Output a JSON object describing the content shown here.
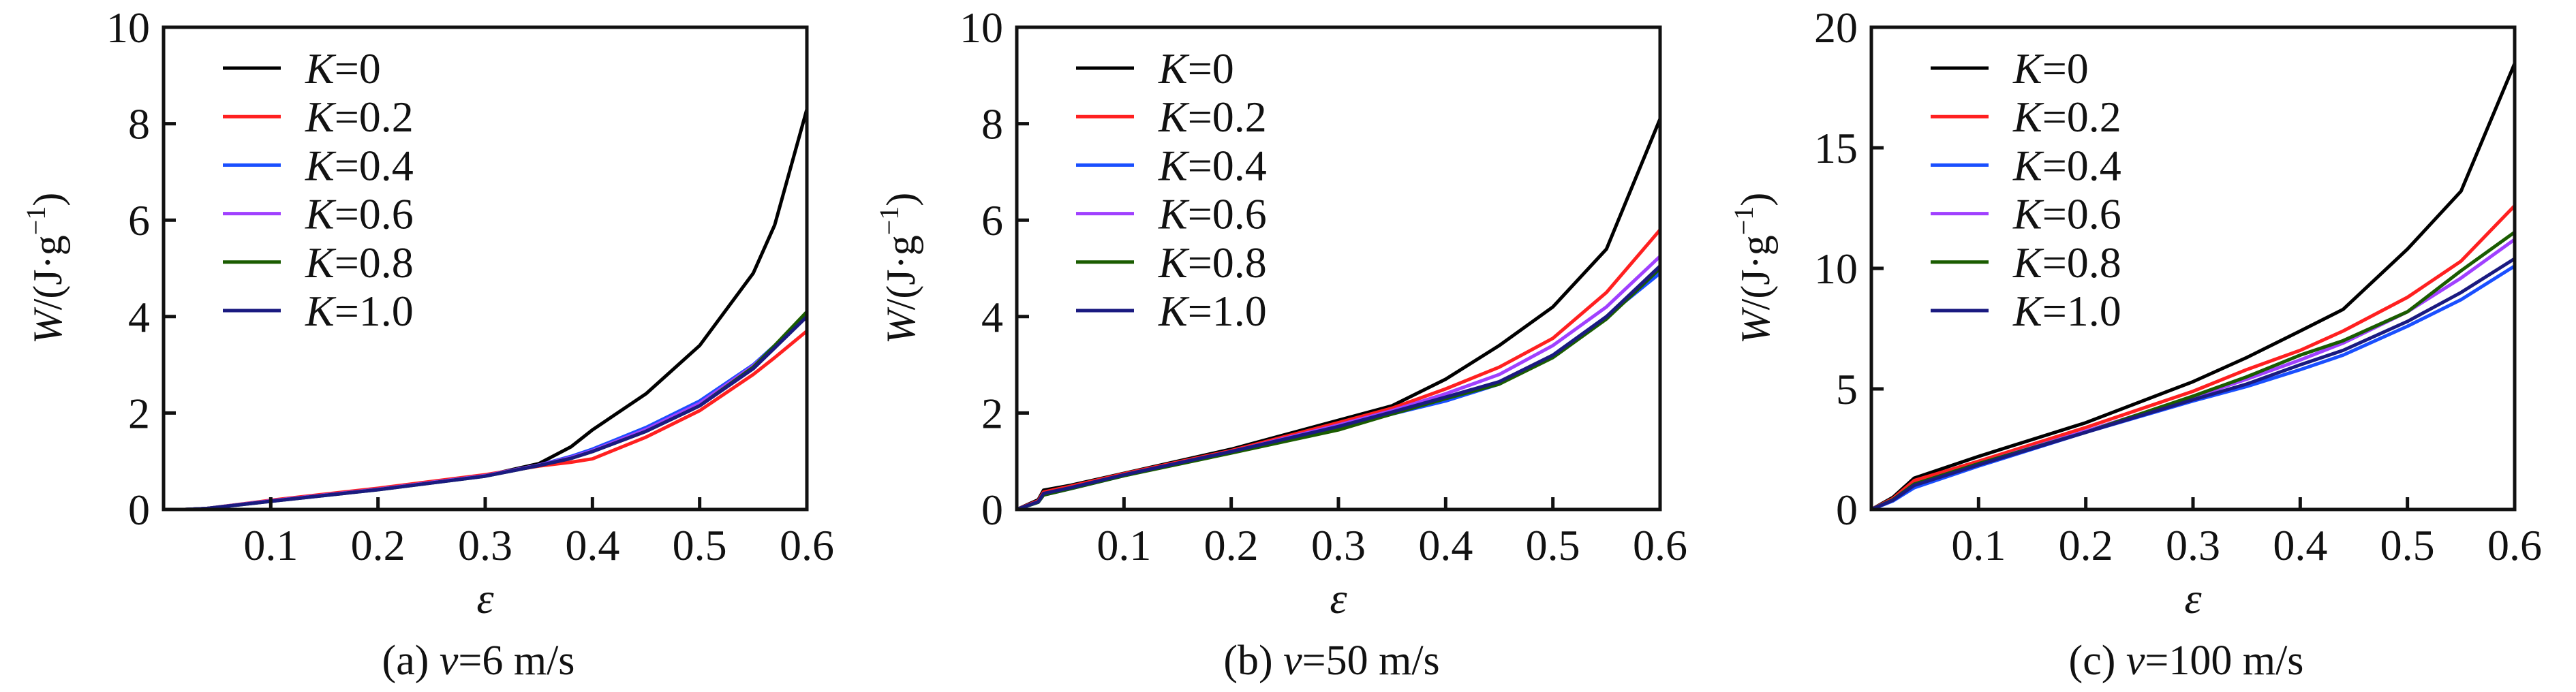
{
  "chart_data": [
    {
      "type": "line",
      "caption_prefix": "(a) ",
      "caption_var": "v",
      "caption_value": "=6 m/s",
      "xlabel": "ε",
      "ylabel_var": "W",
      "ylabel_unit": "/(J·g",
      "ylabel_exp": "−1",
      "ylabel_close": ")",
      "xlim": [
        0,
        0.6
      ],
      "ylim": [
        0,
        10
      ],
      "xticks": [
        "0.1",
        "0.2",
        "0.3",
        "0.4",
        "0.5",
        "0.6"
      ],
      "xtick_values": [
        0.1,
        0.2,
        0.3,
        0.4,
        0.5,
        0.6
      ],
      "yticks": [
        "0",
        "2",
        "4",
        "6",
        "8",
        "10"
      ],
      "ytick_values": [
        0,
        2,
        4,
        6,
        8,
        10
      ],
      "legend_position": "top-left",
      "x": [
        0,
        0.02,
        0.04,
        0.1,
        0.2,
        0.3,
        0.35,
        0.38,
        0.4,
        0.45,
        0.5,
        0.55,
        0.57,
        0.6
      ],
      "series": [
        {
          "name": "K=0",
          "color": "#000000",
          "values": [
            0,
            0,
            0.02,
            0.18,
            0.42,
            0.7,
            0.95,
            1.3,
            1.65,
            2.4,
            3.4,
            4.9,
            5.9,
            8.3
          ]
        },
        {
          "name": "K=0.2",
          "color": "#ff2020",
          "values": [
            0,
            0,
            0.02,
            0.19,
            0.44,
            0.72,
            0.9,
            0.98,
            1.05,
            1.5,
            2.05,
            2.8,
            3.15,
            3.7
          ]
        },
        {
          "name": "K=0.4",
          "color": "#1a4fff",
          "values": [
            0,
            0,
            0.02,
            0.18,
            0.42,
            0.7,
            0.92,
            1.1,
            1.25,
            1.7,
            2.25,
            3.0,
            3.4,
            4.0
          ]
        },
        {
          "name": "K=0.6",
          "color": "#a040ff",
          "values": [
            0,
            0,
            0.02,
            0.18,
            0.42,
            0.7,
            0.92,
            1.08,
            1.22,
            1.66,
            2.2,
            2.98,
            3.38,
            4.0
          ]
        },
        {
          "name": "K=0.8",
          "color": "#1a5c00",
          "values": [
            0,
            0,
            0.02,
            0.17,
            0.41,
            0.69,
            0.91,
            1.06,
            1.2,
            1.62,
            2.15,
            2.95,
            3.4,
            4.1
          ]
        },
        {
          "name": "K=1.0",
          "color": "#1a1a80",
          "values": [
            0,
            0,
            0.02,
            0.17,
            0.41,
            0.69,
            0.91,
            1.06,
            1.2,
            1.62,
            2.15,
            2.92,
            3.35,
            4.0
          ]
        }
      ]
    },
    {
      "type": "line",
      "caption_prefix": "(b) ",
      "caption_var": "v",
      "caption_value": "=50 m/s",
      "xlabel": "ε",
      "ylabel_var": "W",
      "ylabel_unit": "/(J·g",
      "ylabel_exp": "−1",
      "ylabel_close": ")",
      "xlim": [
        0,
        0.6
      ],
      "ylim": [
        0,
        10
      ],
      "xticks": [
        "0.1",
        "0.2",
        "0.3",
        "0.4",
        "0.5",
        "0.6"
      ],
      "xtick_values": [
        0.1,
        0.2,
        0.3,
        0.4,
        0.5,
        0.6
      ],
      "yticks": [
        "0",
        "2",
        "4",
        "6",
        "8",
        "10"
      ],
      "ytick_values": [
        0,
        2,
        4,
        6,
        8,
        10
      ],
      "legend_position": "top-left",
      "x": [
        0,
        0.02,
        0.025,
        0.05,
        0.1,
        0.2,
        0.3,
        0.35,
        0.4,
        0.45,
        0.5,
        0.55,
        0.6
      ],
      "series": [
        {
          "name": "K=0",
          "color": "#000000",
          "values": [
            0,
            0.2,
            0.4,
            0.5,
            0.75,
            1.25,
            1.85,
            2.15,
            2.7,
            3.4,
            4.2,
            5.4,
            8.1
          ]
        },
        {
          "name": "K=0.2",
          "color": "#ff2020",
          "values": [
            0,
            0.18,
            0.36,
            0.48,
            0.74,
            1.22,
            1.8,
            2.1,
            2.5,
            2.95,
            3.55,
            4.5,
            5.8
          ]
        },
        {
          "name": "K=0.4",
          "color": "#1a4fff",
          "values": [
            0,
            0.15,
            0.3,
            0.43,
            0.7,
            1.2,
            1.7,
            1.98,
            2.25,
            2.6,
            3.2,
            4.0,
            4.9
          ]
        },
        {
          "name": "K=0.6",
          "color": "#a040ff",
          "values": [
            0,
            0.16,
            0.32,
            0.45,
            0.72,
            1.2,
            1.75,
            2.05,
            2.4,
            2.8,
            3.4,
            4.2,
            5.25
          ]
        },
        {
          "name": "K=0.8",
          "color": "#1a5c00",
          "values": [
            0,
            0.15,
            0.3,
            0.43,
            0.7,
            1.17,
            1.65,
            1.98,
            2.3,
            2.6,
            3.15,
            3.95,
            5.0
          ]
        },
        {
          "name": "K=1.0",
          "color": "#1a1a80",
          "values": [
            0,
            0.16,
            0.33,
            0.45,
            0.72,
            1.2,
            1.72,
            2.02,
            2.33,
            2.65,
            3.2,
            4.0,
            5.05
          ]
        }
      ]
    },
    {
      "type": "line",
      "caption_prefix": "(c) ",
      "caption_var": "v",
      "caption_value": "=100 m/s",
      "xlabel": "ε",
      "ylabel_var": "W",
      "ylabel_unit": "/(J·g",
      "ylabel_exp": "−1",
      "ylabel_close": ")",
      "xlim": [
        0,
        0.6
      ],
      "ylim": [
        0,
        20
      ],
      "xticks": [
        "0.1",
        "0.2",
        "0.3",
        "0.4",
        "0.5",
        "0.6"
      ],
      "xtick_values": [
        0.1,
        0.2,
        0.3,
        0.4,
        0.5,
        0.6
      ],
      "yticks": [
        "0",
        "5",
        "10",
        "15",
        "20"
      ],
      "ytick_values": [
        0,
        5,
        10,
        15,
        20
      ],
      "legend_position": "top-left",
      "x": [
        0,
        0.02,
        0.04,
        0.1,
        0.2,
        0.3,
        0.35,
        0.4,
        0.44,
        0.5,
        0.55,
        0.6
      ],
      "series": [
        {
          "name": "K=0",
          "color": "#000000",
          "values": [
            0,
            0.5,
            1.3,
            2.2,
            3.6,
            5.3,
            6.3,
            7.4,
            8.3,
            10.8,
            13.2,
            18.5
          ]
        },
        {
          "name": "K=0.2",
          "color": "#ff2020",
          "values": [
            0,
            0.45,
            1.2,
            2.0,
            3.4,
            4.9,
            5.8,
            6.6,
            7.4,
            8.8,
            10.3,
            12.6
          ]
        },
        {
          "name": "K=0.4",
          "color": "#1a4fff",
          "values": [
            0,
            0.35,
            0.9,
            1.8,
            3.2,
            4.5,
            5.1,
            5.8,
            6.4,
            7.6,
            8.7,
            10.1
          ]
        },
        {
          "name": "K=0.6",
          "color": "#a040ff",
          "values": [
            0,
            0.4,
            1.05,
            1.9,
            3.25,
            4.65,
            5.4,
            6.2,
            6.9,
            8.2,
            9.6,
            11.2
          ]
        },
        {
          "name": "K=0.8",
          "color": "#1a5c00",
          "values": [
            0,
            0.4,
            1.05,
            1.9,
            3.2,
            4.7,
            5.5,
            6.4,
            7.0,
            8.2,
            9.9,
            11.5
          ]
        },
        {
          "name": "K=1.0",
          "color": "#1a1a80",
          "values": [
            0,
            0.38,
            1.0,
            1.85,
            3.2,
            4.55,
            5.2,
            6.0,
            6.6,
            7.8,
            9.0,
            10.4
          ]
        }
      ]
    }
  ]
}
